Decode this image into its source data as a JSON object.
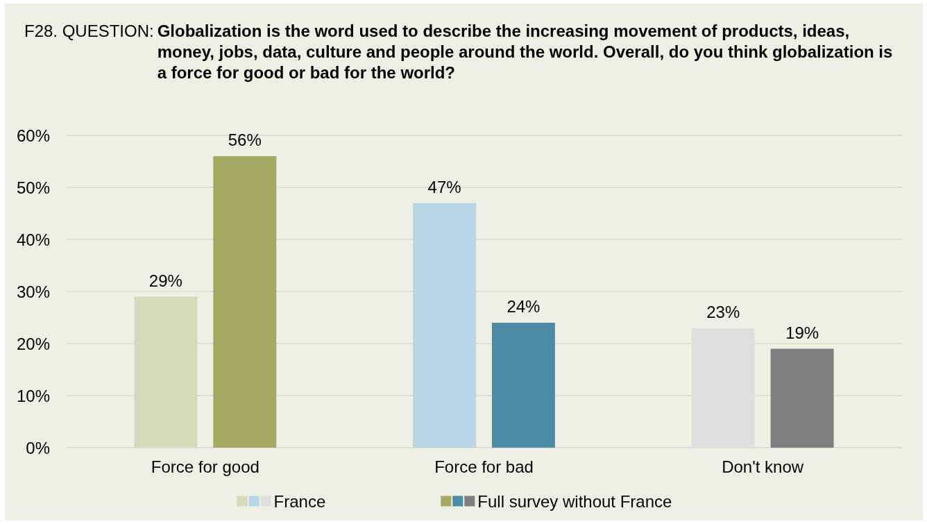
{
  "chart_data": {
    "type": "bar",
    "title": "Globalization is the word used to describe the increasing movement of products, ideas, money, jobs, data, culture and people around the world. Overall, do you think globalization is a force for good or bad for the world?",
    "annotations": [
      "F28. QUESTION:"
    ],
    "categories": [
      "Force for good",
      "Force for bad",
      "Don't know"
    ],
    "series": [
      {
        "name": "France",
        "colors": [
          "#d6dabb",
          "#b8d6e6",
          "#dfdfdf"
        ],
        "values": [
          29,
          47,
          23
        ],
        "value_labels": [
          "29%",
          "47%",
          "23%"
        ]
      },
      {
        "name": "Full survey without France",
        "colors": [
          "#a3a961",
          "#4d8ca6",
          "#7f7f7f"
        ],
        "values": [
          56,
          24,
          19
        ],
        "value_labels": [
          "56%",
          "24%",
          "19%"
        ]
      }
    ],
    "ylim": [
      0,
      60
    ],
    "yticks": [
      {
        "value": 0,
        "label": "0%"
      },
      {
        "value": 10,
        "label": "10%"
      },
      {
        "value": 20,
        "label": "20%"
      },
      {
        "value": 30,
        "label": "30%"
      },
      {
        "value": 40,
        "label": "40%"
      },
      {
        "value": 50,
        "label": "50%"
      },
      {
        "value": 60,
        "label": "60%"
      }
    ],
    "grid": "y",
    "legend": "bottom"
  }
}
